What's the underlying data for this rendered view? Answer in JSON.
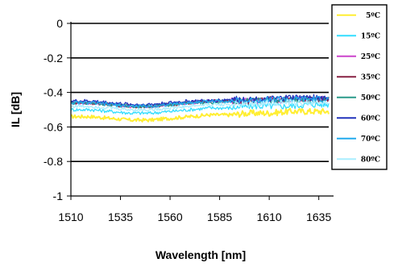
{
  "chart_data": {
    "type": "line",
    "xlabel": "Wavelength [nm]",
    "ylabel": "IL [dB]",
    "xlim": [
      1510,
      1640
    ],
    "ylim": [
      -1,
      0
    ],
    "x_ticks": [
      "1510",
      "1535",
      "1560",
      "1585",
      "1610",
      "1635"
    ],
    "y_ticks": [
      "0",
      "-0.2",
      "-0.4",
      "-0.6",
      "-0.8",
      "-1"
    ],
    "grid": "horizontal",
    "legend_position": "right",
    "x": [
      1510,
      1520,
      1530,
      1540,
      1550,
      1560,
      1570,
      1580,
      1590,
      1600,
      1610,
      1620,
      1630,
      1640
    ],
    "series": [
      {
        "name": "5ºC",
        "color": "#ffee33",
        "values": [
          -0.54,
          -0.54,
          -0.55,
          -0.56,
          -0.56,
          -0.55,
          -0.54,
          -0.53,
          -0.53,
          -0.52,
          -0.52,
          -0.51,
          -0.51,
          -0.51
        ]
      },
      {
        "name": "15ºC",
        "color": "#33ddff",
        "values": [
          -0.5,
          -0.5,
          -0.51,
          -0.52,
          -0.52,
          -0.51,
          -0.5,
          -0.49,
          -0.49,
          -0.48,
          -0.48,
          -0.48,
          -0.47,
          -0.47
        ]
      },
      {
        "name": "25ºC",
        "color": "#cc44cc",
        "values": [
          -0.46,
          -0.46,
          -0.47,
          -0.48,
          -0.48,
          -0.47,
          -0.46,
          -0.45,
          -0.45,
          -0.45,
          -0.45,
          -0.44,
          -0.44,
          -0.44
        ]
      },
      {
        "name": "35ºC",
        "color": "#882244",
        "values": [
          -0.46,
          -0.46,
          -0.47,
          -0.48,
          -0.48,
          -0.47,
          -0.46,
          -0.45,
          -0.45,
          -0.45,
          -0.44,
          -0.44,
          -0.44,
          -0.44
        ]
      },
      {
        "name": "50ºC",
        "color": "#2a9a8a",
        "values": [
          -0.46,
          -0.46,
          -0.47,
          -0.48,
          -0.48,
          -0.47,
          -0.46,
          -0.46,
          -0.45,
          -0.45,
          -0.45,
          -0.44,
          -0.44,
          -0.44
        ]
      },
      {
        "name": "60ºC",
        "color": "#2233bb",
        "values": [
          -0.45,
          -0.45,
          -0.46,
          -0.47,
          -0.47,
          -0.46,
          -0.45,
          -0.45,
          -0.44,
          -0.44,
          -0.44,
          -0.43,
          -0.43,
          -0.43
        ]
      },
      {
        "name": "70ºC",
        "color": "#22aaee",
        "values": [
          -0.46,
          -0.46,
          -0.47,
          -0.48,
          -0.48,
          -0.47,
          -0.46,
          -0.45,
          -0.45,
          -0.45,
          -0.44,
          -0.44,
          -0.44,
          -0.44
        ]
      },
      {
        "name": "80ºC",
        "color": "#aaeeff",
        "values": [
          -0.48,
          -0.48,
          -0.49,
          -0.5,
          -0.5,
          -0.49,
          -0.48,
          -0.47,
          -0.47,
          -0.47,
          -0.46,
          -0.46,
          -0.46,
          -0.46
        ]
      }
    ]
  }
}
